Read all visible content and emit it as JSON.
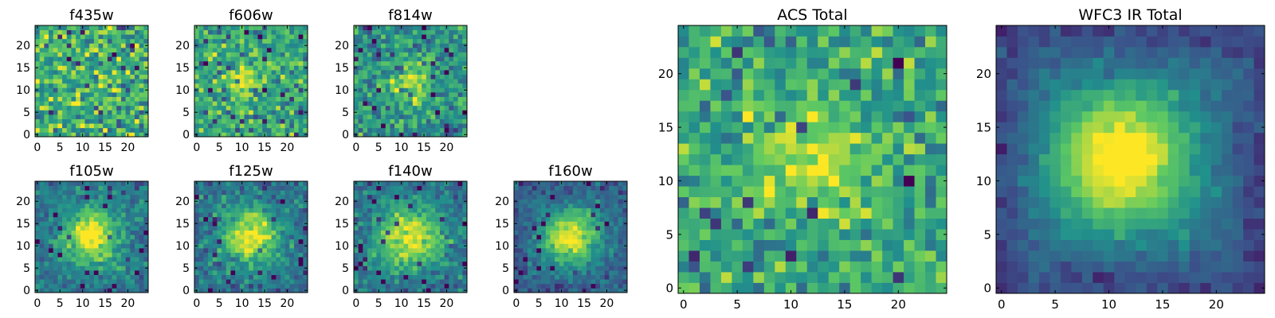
{
  "figure": {
    "colormap": "viridis",
    "colormap_stops": [
      "#440154",
      "#3b528b",
      "#21918c",
      "#5ec962",
      "#fde725"
    ],
    "axes_frame_color": "#000000"
  },
  "chart_data": [
    {
      "type": "heatmap",
      "title": "f435w",
      "grid_size": [
        25,
        25
      ],
      "xlim": [
        0,
        24
      ],
      "ylim": [
        0,
        24
      ],
      "xticks": [
        "0",
        "5",
        "10",
        "15",
        "20"
      ],
      "yticks": [
        "0",
        "5",
        "10",
        "15",
        "20"
      ],
      "peak": [
        11,
        12
      ],
      "profile": {
        "amplitude": 0.0,
        "width": 3.0
      },
      "noise_level": 0.32,
      "base_level": 0.66,
      "edge_level": 0.66,
      "seed": 11,
      "values_description": "pure noise field, no visible source"
    },
    {
      "type": "heatmap",
      "title": "f606w",
      "grid_size": [
        25,
        25
      ],
      "xlim": [
        0,
        24
      ],
      "ylim": [
        0,
        24
      ],
      "xticks": [
        "0",
        "5",
        "10",
        "15",
        "20"
      ],
      "yticks": [
        "0",
        "5",
        "10",
        "15",
        "20"
      ],
      "peak": [
        11,
        12
      ],
      "profile": {
        "amplitude": 0.32,
        "width": 3.0
      },
      "noise_level": 0.26,
      "base_level": 0.58,
      "edge_level": 0.58,
      "seed": 23
    },
    {
      "type": "heatmap",
      "title": "f814w",
      "grid_size": [
        25,
        25
      ],
      "xlim": [
        0,
        24
      ],
      "ylim": [
        0,
        24
      ],
      "xticks": [
        "0",
        "5",
        "10",
        "15",
        "20"
      ],
      "yticks": [
        "0",
        "5",
        "10",
        "15",
        "20"
      ],
      "peak": [
        12,
        12
      ],
      "profile": {
        "amplitude": 0.38,
        "width": 3.2
      },
      "noise_level": 0.24,
      "base_level": 0.52,
      "edge_level": 0.52,
      "seed": 37
    },
    {
      "type": "heatmap",
      "title": "f105w",
      "grid_size": [
        25,
        25
      ],
      "xlim": [
        0,
        24
      ],
      "ylim": [
        0,
        24
      ],
      "xticks": [
        "0",
        "5",
        "10",
        "15",
        "20"
      ],
      "yticks": [
        "0",
        "5",
        "10",
        "15",
        "20"
      ],
      "peak": [
        12,
        12
      ],
      "profile": {
        "amplitude": 0.55,
        "width": 4.0
      },
      "noise_level": 0.16,
      "base_level": 0.46,
      "edge_level": 0.38,
      "seed": 41
    },
    {
      "type": "heatmap",
      "title": "f125w",
      "grid_size": [
        25,
        25
      ],
      "xlim": [
        0,
        24
      ],
      "ylim": [
        0,
        24
      ],
      "xticks": [
        "0",
        "5",
        "10",
        "15",
        "20"
      ],
      "yticks": [
        "0",
        "5",
        "10",
        "15",
        "20"
      ],
      "peak": [
        12,
        12
      ],
      "profile": {
        "amplitude": 0.52,
        "width": 4.0
      },
      "noise_level": 0.18,
      "base_level": 0.46,
      "edge_level": 0.36,
      "seed": 53
    },
    {
      "type": "heatmap",
      "title": "f140w",
      "grid_size": [
        25,
        25
      ],
      "xlim": [
        0,
        24
      ],
      "ylim": [
        0,
        24
      ],
      "xticks": [
        "0",
        "5",
        "10",
        "15",
        "20"
      ],
      "yticks": [
        "0",
        "5",
        "10",
        "15",
        "20"
      ],
      "peak": [
        12,
        12
      ],
      "profile": {
        "amplitude": 0.5,
        "width": 4.2
      },
      "noise_level": 0.16,
      "base_level": 0.48,
      "edge_level": 0.38,
      "seed": 67
    },
    {
      "type": "heatmap",
      "title": "f160w",
      "grid_size": [
        25,
        25
      ],
      "xlim": [
        0,
        24
      ],
      "ylim": [
        0,
        24
      ],
      "xticks": [
        "0",
        "5",
        "10",
        "15",
        "20"
      ],
      "yticks": [
        "0",
        "5",
        "10",
        "15",
        "20"
      ],
      "peak": [
        12,
        12
      ],
      "profile": {
        "amplitude": 0.58,
        "width": 4.0
      },
      "noise_level": 0.14,
      "base_level": 0.42,
      "edge_level": 0.28,
      "seed": 79
    },
    {
      "type": "heatmap",
      "title": "ACS Total",
      "grid_size": [
        25,
        25
      ],
      "xlim": [
        0,
        24
      ],
      "ylim": [
        0,
        24
      ],
      "xticks": [
        "0",
        "5",
        "10",
        "15",
        "20"
      ],
      "yticks": [
        "0",
        "5",
        "10",
        "15",
        "20"
      ],
      "peak": [
        12,
        12
      ],
      "profile": {
        "amplitude": 0.34,
        "width": 3.6
      },
      "noise_level": 0.24,
      "base_level": 0.6,
      "edge_level": 0.58,
      "seed": 97
    },
    {
      "type": "heatmap",
      "title": "WFC3 IR Total",
      "grid_size": [
        25,
        25
      ],
      "xlim": [
        0,
        24
      ],
      "ylim": [
        0,
        24
      ],
      "xticks": [
        "0",
        "5",
        "10",
        "15",
        "20"
      ],
      "yticks": [
        "0",
        "5",
        "10",
        "15",
        "20"
      ],
      "peak": [
        11,
        12
      ],
      "profile": {
        "amplitude": 0.62,
        "width": 4.3
      },
      "noise_level": 0.08,
      "base_level": 0.46,
      "edge_level": 0.2,
      "seed": 113
    }
  ]
}
